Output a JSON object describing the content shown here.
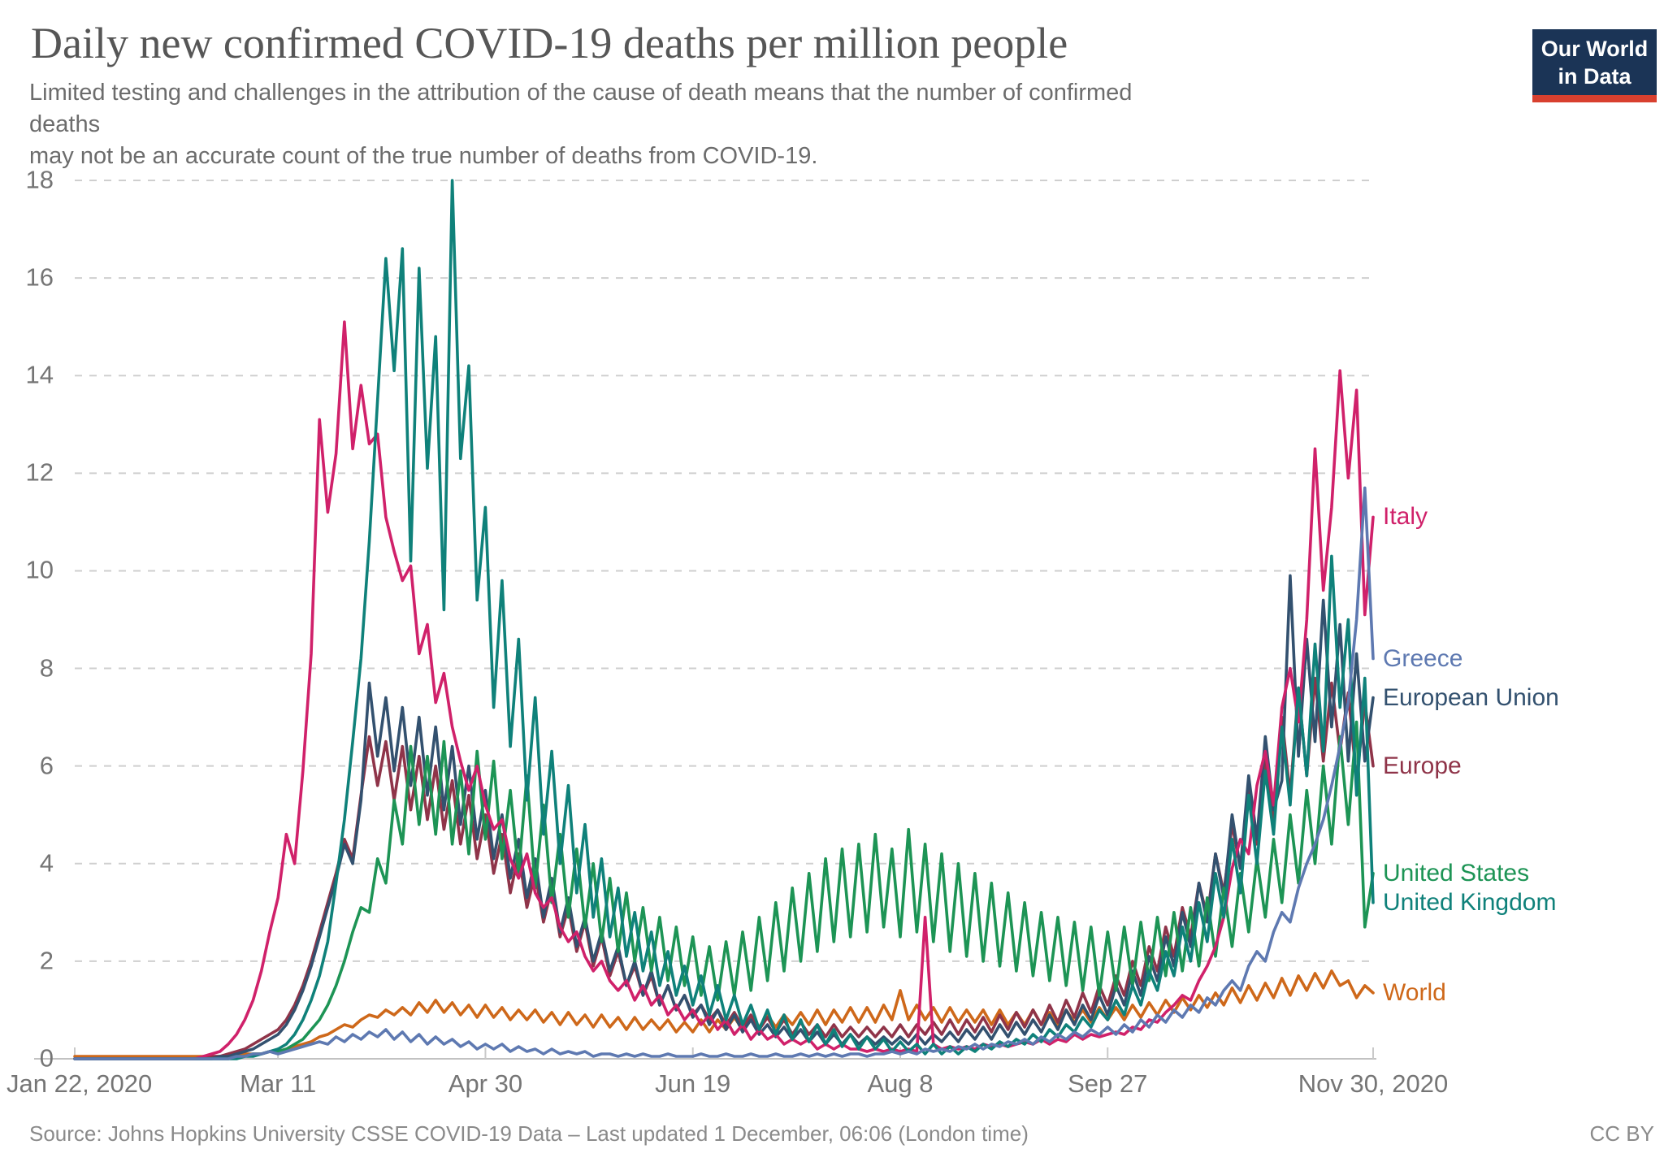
{
  "header": {
    "title": "Daily new confirmed COVID-19 deaths per million people",
    "subtitle_line1": "Limited testing and challenges in the attribution of the cause of death means that the number of confirmed deaths",
    "subtitle_line2": "may not be an accurate count of the true number of deaths from COVID-19.",
    "logo": {
      "line1": "Our World",
      "line2": "in Data"
    }
  },
  "footer": {
    "source": "Source: Johns Hopkins University CSSE COVID-19 Data – Last updated 1 December, 06:06 (London time)",
    "license": "CC BY"
  },
  "chart_data": {
    "type": "line",
    "title": "Daily new confirmed COVID-19 deaths per million people",
    "xlabel": "",
    "ylabel": "",
    "ylim": [
      0,
      18
    ],
    "grid": true,
    "legend_position": "right-edge-labels",
    "x_axis": {
      "start_label": "Jan 22, 2020",
      "end_label": "Nov 30, 2020",
      "ticks": [
        {
          "day": 0,
          "label": "Jan 22, 2020",
          "align": "left"
        },
        {
          "day": 49,
          "label": "Mar 11"
        },
        {
          "day": 99,
          "label": "Apr 30"
        },
        {
          "day": 149,
          "label": "Jun 19"
        },
        {
          "day": 199,
          "label": "Aug 8"
        },
        {
          "day": 249,
          "label": "Sep 27"
        },
        {
          "day": 313,
          "label": "Nov 30, 2020"
        }
      ]
    },
    "y_axis": {
      "ticks": [
        0,
        2,
        4,
        6,
        8,
        10,
        12,
        14,
        16,
        18
      ]
    },
    "sampling": {
      "start_day": 29,
      "step_days": 2,
      "total_days": 313
    },
    "series": [
      {
        "name": "world",
        "label": "World",
        "color": "#ce681a",
        "values": [
          0.05,
          0.05,
          0.05,
          0.05,
          0.05,
          0.05,
          0.1,
          0.1,
          0.1,
          0.15,
          0.15,
          0.2,
          0.25,
          0.3,
          0.35,
          0.45,
          0.5,
          0.6,
          0.7,
          0.65,
          0.8,
          0.9,
          0.85,
          1.0,
          0.9,
          1.05,
          0.9,
          1.15,
          0.95,
          1.2,
          0.95,
          1.15,
          0.9,
          1.1,
          0.85,
          1.1,
          0.85,
          1.05,
          0.8,
          1.0,
          0.8,
          1.0,
          0.75,
          0.95,
          0.7,
          0.95,
          0.7,
          0.9,
          0.65,
          0.9,
          0.65,
          0.85,
          0.6,
          0.85,
          0.6,
          0.8,
          0.6,
          0.8,
          0.55,
          0.75,
          0.55,
          0.8,
          0.55,
          0.8,
          0.6,
          0.85,
          0.6,
          0.85,
          0.65,
          0.9,
          0.65,
          0.9,
          0.7,
          0.95,
          0.7,
          1.0,
          0.7,
          1.0,
          0.75,
          1.05,
          0.75,
          1.05,
          0.75,
          1.1,
          0.8,
          1.4,
          0.8,
          1.1,
          0.8,
          1.05,
          0.75,
          1.05,
          0.75,
          1.0,
          0.75,
          1.0,
          0.7,
          1.0,
          0.7,
          0.95,
          0.7,
          1.0,
          0.7,
          0.95,
          0.7,
          1.0,
          0.75,
          1.0,
          0.75,
          1.05,
          0.8,
          1.05,
          0.8,
          1.1,
          0.85,
          1.15,
          0.9,
          1.2,
          0.95,
          1.25,
          1.0,
          1.3,
          1.05,
          1.35,
          1.1,
          1.45,
          1.15,
          1.5,
          1.2,
          1.55,
          1.25,
          1.65,
          1.3,
          1.7,
          1.4,
          1.75,
          1.45,
          1.8,
          1.5,
          1.6,
          1.25,
          1.5,
          1.35
        ]
      },
      {
        "name": "europe",
        "label": "Europe",
        "color": "#8f3449",
        "values": [
          0,
          0,
          0.05,
          0.05,
          0.1,
          0.15,
          0.2,
          0.3,
          0.4,
          0.5,
          0.6,
          0.8,
          1.1,
          1.5,
          2.0,
          2.6,
          3.2,
          3.8,
          4.5,
          4.1,
          5.4,
          6.6,
          5.6,
          6.5,
          5.3,
          6.4,
          5.1,
          6.2,
          4.9,
          6.0,
          4.7,
          5.7,
          4.4,
          5.4,
          4.1,
          5.0,
          3.8,
          4.6,
          3.4,
          4.2,
          3.1,
          3.8,
          2.8,
          3.5,
          2.5,
          3.1,
          2.2,
          2.8,
          1.9,
          2.5,
          1.7,
          2.2,
          1.5,
          1.9,
          1.3,
          1.7,
          1.1,
          1.5,
          1.0,
          1.3,
          0.9,
          1.1,
          0.8,
          1.0,
          0.7,
          0.95,
          0.65,
          0.9,
          0.6,
          0.85,
          0.55,
          0.8,
          0.5,
          0.75,
          0.5,
          0.7,
          0.45,
          0.7,
          0.45,
          0.65,
          0.45,
          0.65,
          0.45,
          0.65,
          0.45,
          0.7,
          0.45,
          0.7,
          0.5,
          0.75,
          0.5,
          0.8,
          0.5,
          0.8,
          0.55,
          0.85,
          0.55,
          0.9,
          0.6,
          0.95,
          0.65,
          1.0,
          0.7,
          1.1,
          0.75,
          1.2,
          0.85,
          1.35,
          0.95,
          1.5,
          1.1,
          1.7,
          1.3,
          2.0,
          1.5,
          2.3,
          1.8,
          2.7,
          2.1,
          3.1,
          2.5,
          3.6,
          2.9,
          4.2,
          3.4,
          4.8,
          3.9,
          5.5,
          4.4,
          6.2,
          4.9,
          7.0,
          5.4,
          7.6,
          5.8,
          7.8,
          6.1,
          7.7,
          6.3,
          7.5,
          5.7,
          7.3,
          6.0
        ]
      },
      {
        "name": "european-union",
        "label": "European Union",
        "color": "#33516f",
        "values": [
          0,
          0,
          0,
          0.05,
          0.05,
          0.1,
          0.15,
          0.2,
          0.3,
          0.4,
          0.5,
          0.7,
          1.0,
          1.4,
          1.9,
          2.5,
          3.1,
          3.7,
          4.4,
          4.0,
          5.3,
          7.7,
          6.2,
          7.4,
          5.9,
          7.2,
          5.6,
          7.0,
          5.4,
          6.8,
          5.1,
          6.4,
          4.8,
          6.0,
          4.5,
          5.5,
          4.1,
          5.0,
          3.7,
          4.5,
          3.3,
          4.1,
          2.9,
          3.7,
          2.6,
          3.3,
          2.3,
          2.9,
          2.0,
          2.6,
          1.8,
          2.3,
          1.5,
          2.0,
          1.3,
          1.8,
          1.1,
          1.5,
          1.0,
          1.3,
          0.85,
          1.1,
          0.7,
          1.0,
          0.6,
          0.9,
          0.55,
          0.8,
          0.5,
          0.7,
          0.45,
          0.65,
          0.4,
          0.6,
          0.35,
          0.55,
          0.3,
          0.5,
          0.3,
          0.5,
          0.3,
          0.45,
          0.3,
          0.45,
          0.3,
          0.45,
          0.3,
          0.5,
          0.3,
          0.5,
          0.35,
          0.55,
          0.35,
          0.6,
          0.4,
          0.65,
          0.4,
          0.7,
          0.45,
          0.75,
          0.5,
          0.8,
          0.55,
          0.9,
          0.6,
          1.0,
          0.7,
          1.1,
          0.8,
          1.3,
          0.9,
          1.5,
          1.1,
          1.8,
          1.3,
          2.1,
          1.6,
          2.5,
          1.9,
          3.0,
          2.3,
          3.6,
          2.8,
          4.2,
          3.3,
          5.0,
          3.9,
          5.8,
          4.5,
          6.6,
          5.1,
          5.7,
          9.9,
          6.2,
          8.6,
          6.5,
          9.4,
          6.8,
          8.9,
          6.1,
          8.3,
          6.1,
          7.4
        ]
      },
      {
        "name": "united-states",
        "label": "United States",
        "color": "#1d9455",
        "values": [
          0,
          0,
          0,
          0,
          0,
          0.05,
          0.05,
          0.1,
          0.1,
          0.15,
          0.15,
          0.2,
          0.3,
          0.4,
          0.6,
          0.8,
          1.1,
          1.5,
          2.0,
          2.6,
          3.1,
          3.0,
          4.1,
          3.6,
          5.3,
          4.4,
          6.4,
          4.8,
          6.2,
          4.6,
          6.5,
          4.4,
          5.9,
          4.2,
          6.3,
          4.5,
          6.1,
          4.1,
          5.5,
          3.8,
          5.8,
          3.5,
          5.2,
          3.2,
          4.6,
          2.9,
          4.3,
          2.7,
          4.0,
          2.4,
          3.7,
          2.2,
          3.4,
          2.0,
          3.1,
          1.8,
          2.9,
          1.6,
          2.7,
          1.5,
          2.5,
          1.3,
          2.3,
          1.2,
          2.4,
          1.3,
          2.6,
          1.4,
          2.9,
          1.6,
          3.2,
          1.8,
          3.5,
          2.0,
          3.8,
          2.2,
          4.1,
          2.4,
          4.3,
          2.5,
          4.4,
          2.6,
          4.6,
          2.7,
          4.3,
          2.5,
          4.7,
          2.6,
          4.4,
          2.4,
          4.2,
          2.2,
          4.0,
          2.1,
          3.8,
          2.0,
          3.6,
          1.9,
          3.4,
          1.8,
          3.2,
          1.7,
          3.0,
          1.6,
          2.9,
          1.5,
          2.8,
          1.4,
          2.7,
          1.3,
          2.6,
          1.4,
          2.7,
          1.5,
          2.8,
          1.6,
          2.9,
          1.7,
          3.0,
          1.8,
          3.1,
          1.9,
          3.3,
          2.1,
          3.5,
          2.3,
          3.8,
          2.6,
          4.1,
          2.9,
          4.5,
          3.2,
          5.0,
          3.6,
          5.5,
          4.0,
          6.0,
          4.4,
          6.6,
          4.8,
          6.9,
          2.7,
          3.8
        ]
      },
      {
        "name": "italy",
        "label": "Italy",
        "color": "#d0216a",
        "values": [
          0,
          0.05,
          0.1,
          0.15,
          0.3,
          0.5,
          0.8,
          1.2,
          1.8,
          2.6,
          3.3,
          4.6,
          4.0,
          5.9,
          8.3,
          13.1,
          11.2,
          12.4,
          15.1,
          12.5,
          13.8,
          12.6,
          12.8,
          11.1,
          10.4,
          9.8,
          10.1,
          8.3,
          8.9,
          7.3,
          7.9,
          6.8,
          6.1,
          5.5,
          6.0,
          5.2,
          4.7,
          4.9,
          4.1,
          3.7,
          4.2,
          3.4,
          3.1,
          3.3,
          2.7,
          2.4,
          2.6,
          2.1,
          1.8,
          2.0,
          1.6,
          1.4,
          1.6,
          1.2,
          1.5,
          1.1,
          1.3,
          0.9,
          1.1,
          0.8,
          1.0,
          0.7,
          0.9,
          0.6,
          0.8,
          0.5,
          0.7,
          0.4,
          0.6,
          0.4,
          0.5,
          0.3,
          0.4,
          0.3,
          0.4,
          0.2,
          0.3,
          0.2,
          0.3,
          0.2,
          0.2,
          0.15,
          0.2,
          0.15,
          0.2,
          0.15,
          0.2,
          0.15,
          2.9,
          0.3,
          0.2,
          0.25,
          0.2,
          0.25,
          0.2,
          0.3,
          0.25,
          0.3,
          0.25,
          0.3,
          0.35,
          0.3,
          0.4,
          0.3,
          0.4,
          0.35,
          0.5,
          0.4,
          0.5,
          0.45,
          0.5,
          0.55,
          0.5,
          0.65,
          0.6,
          0.8,
          0.75,
          0.95,
          1.1,
          1.3,
          1.2,
          1.6,
          1.9,
          2.3,
          2.9,
          3.9,
          4.5,
          4.2,
          5.6,
          6.3,
          5.2,
          7.2,
          8.0,
          6.9,
          9.0,
          12.5,
          9.6,
          11.3,
          14.1,
          11.9,
          13.7,
          9.1,
          11.1
        ]
      },
      {
        "name": "united-kingdom",
        "label": "United Kingdom",
        "color": "#0f817a",
        "values": [
          0,
          0,
          0,
          0,
          0,
          0,
          0.05,
          0.05,
          0.1,
          0.15,
          0.2,
          0.3,
          0.5,
          0.8,
          1.2,
          1.7,
          2.4,
          3.6,
          4.9,
          6.5,
          8.2,
          10.6,
          13.5,
          16.4,
          14.1,
          16.6,
          10.2,
          16.2,
          12.1,
          14.8,
          9.2,
          18.0,
          12.3,
          14.2,
          9.4,
          11.3,
          7.2,
          9.8,
          6.4,
          8.6,
          5.3,
          7.4,
          4.6,
          6.3,
          4.0,
          5.6,
          3.4,
          4.8,
          2.9,
          4.1,
          2.5,
          3.5,
          2.1,
          3.0,
          1.8,
          2.6,
          1.5,
          2.2,
          1.3,
          1.9,
          1.1,
          1.7,
          0.9,
          1.5,
          0.8,
          1.3,
          0.7,
          1.1,
          0.6,
          1.0,
          0.5,
          0.9,
          0.4,
          0.8,
          0.35,
          0.7,
          0.3,
          0.6,
          0.25,
          0.5,
          0.2,
          0.45,
          0.2,
          0.4,
          0.15,
          0.35,
          0.15,
          0.3,
          0.1,
          0.3,
          0.1,
          0.25,
          0.1,
          0.25,
          0.15,
          0.3,
          0.2,
          0.35,
          0.25,
          0.4,
          0.3,
          0.5,
          0.35,
          0.6,
          0.45,
          0.7,
          0.55,
          0.85,
          0.65,
          1.0,
          0.8,
          1.2,
          0.9,
          1.5,
          1.1,
          1.8,
          1.4,
          2.2,
          1.7,
          2.7,
          2.0,
          3.2,
          2.4,
          3.8,
          2.9,
          4.5,
          3.4,
          5.4,
          4.0,
          5.9,
          4.6,
          6.8,
          5.2,
          7.6,
          5.8,
          8.5,
          6.3,
          10.3,
          7.2,
          9.0,
          5.4,
          7.8,
          3.2
        ]
      },
      {
        "name": "greece",
        "label": "Greece",
        "color": "#5e79b1",
        "values": [
          0,
          0,
          0,
          0,
          0,
          0.05,
          0.05,
          0.1,
          0.1,
          0.15,
          0.1,
          0.15,
          0.2,
          0.25,
          0.3,
          0.35,
          0.3,
          0.45,
          0.35,
          0.5,
          0.4,
          0.55,
          0.45,
          0.6,
          0.4,
          0.55,
          0.35,
          0.5,
          0.3,
          0.45,
          0.3,
          0.4,
          0.25,
          0.35,
          0.2,
          0.3,
          0.2,
          0.3,
          0.15,
          0.25,
          0.15,
          0.2,
          0.1,
          0.2,
          0.1,
          0.15,
          0.1,
          0.15,
          0.05,
          0.1,
          0.1,
          0.05,
          0.1,
          0.05,
          0.1,
          0.05,
          0.05,
          0.1,
          0.05,
          0.05,
          0.05,
          0.1,
          0.05,
          0.05,
          0.1,
          0.05,
          0.05,
          0.1,
          0.05,
          0.05,
          0.1,
          0.05,
          0.05,
          0.1,
          0.05,
          0.1,
          0.05,
          0.1,
          0.05,
          0.1,
          0.1,
          0.05,
          0.1,
          0.1,
          0.15,
          0.1,
          0.15,
          0.1,
          0.2,
          0.15,
          0.2,
          0.15,
          0.25,
          0.2,
          0.3,
          0.2,
          0.3,
          0.25,
          0.35,
          0.3,
          0.4,
          0.3,
          0.45,
          0.35,
          0.5,
          0.4,
          0.55,
          0.45,
          0.6,
          0.5,
          0.65,
          0.5,
          0.7,
          0.55,
          0.8,
          0.65,
          0.9,
          0.75,
          1.0,
          0.85,
          1.1,
          0.95,
          1.25,
          1.1,
          1.4,
          1.6,
          1.4,
          1.9,
          2.2,
          2.0,
          2.6,
          3.0,
          2.8,
          3.5,
          4.0,
          4.4,
          4.9,
          5.6,
          6.4,
          7.3,
          9.0,
          11.7,
          8.2
        ]
      }
    ]
  }
}
